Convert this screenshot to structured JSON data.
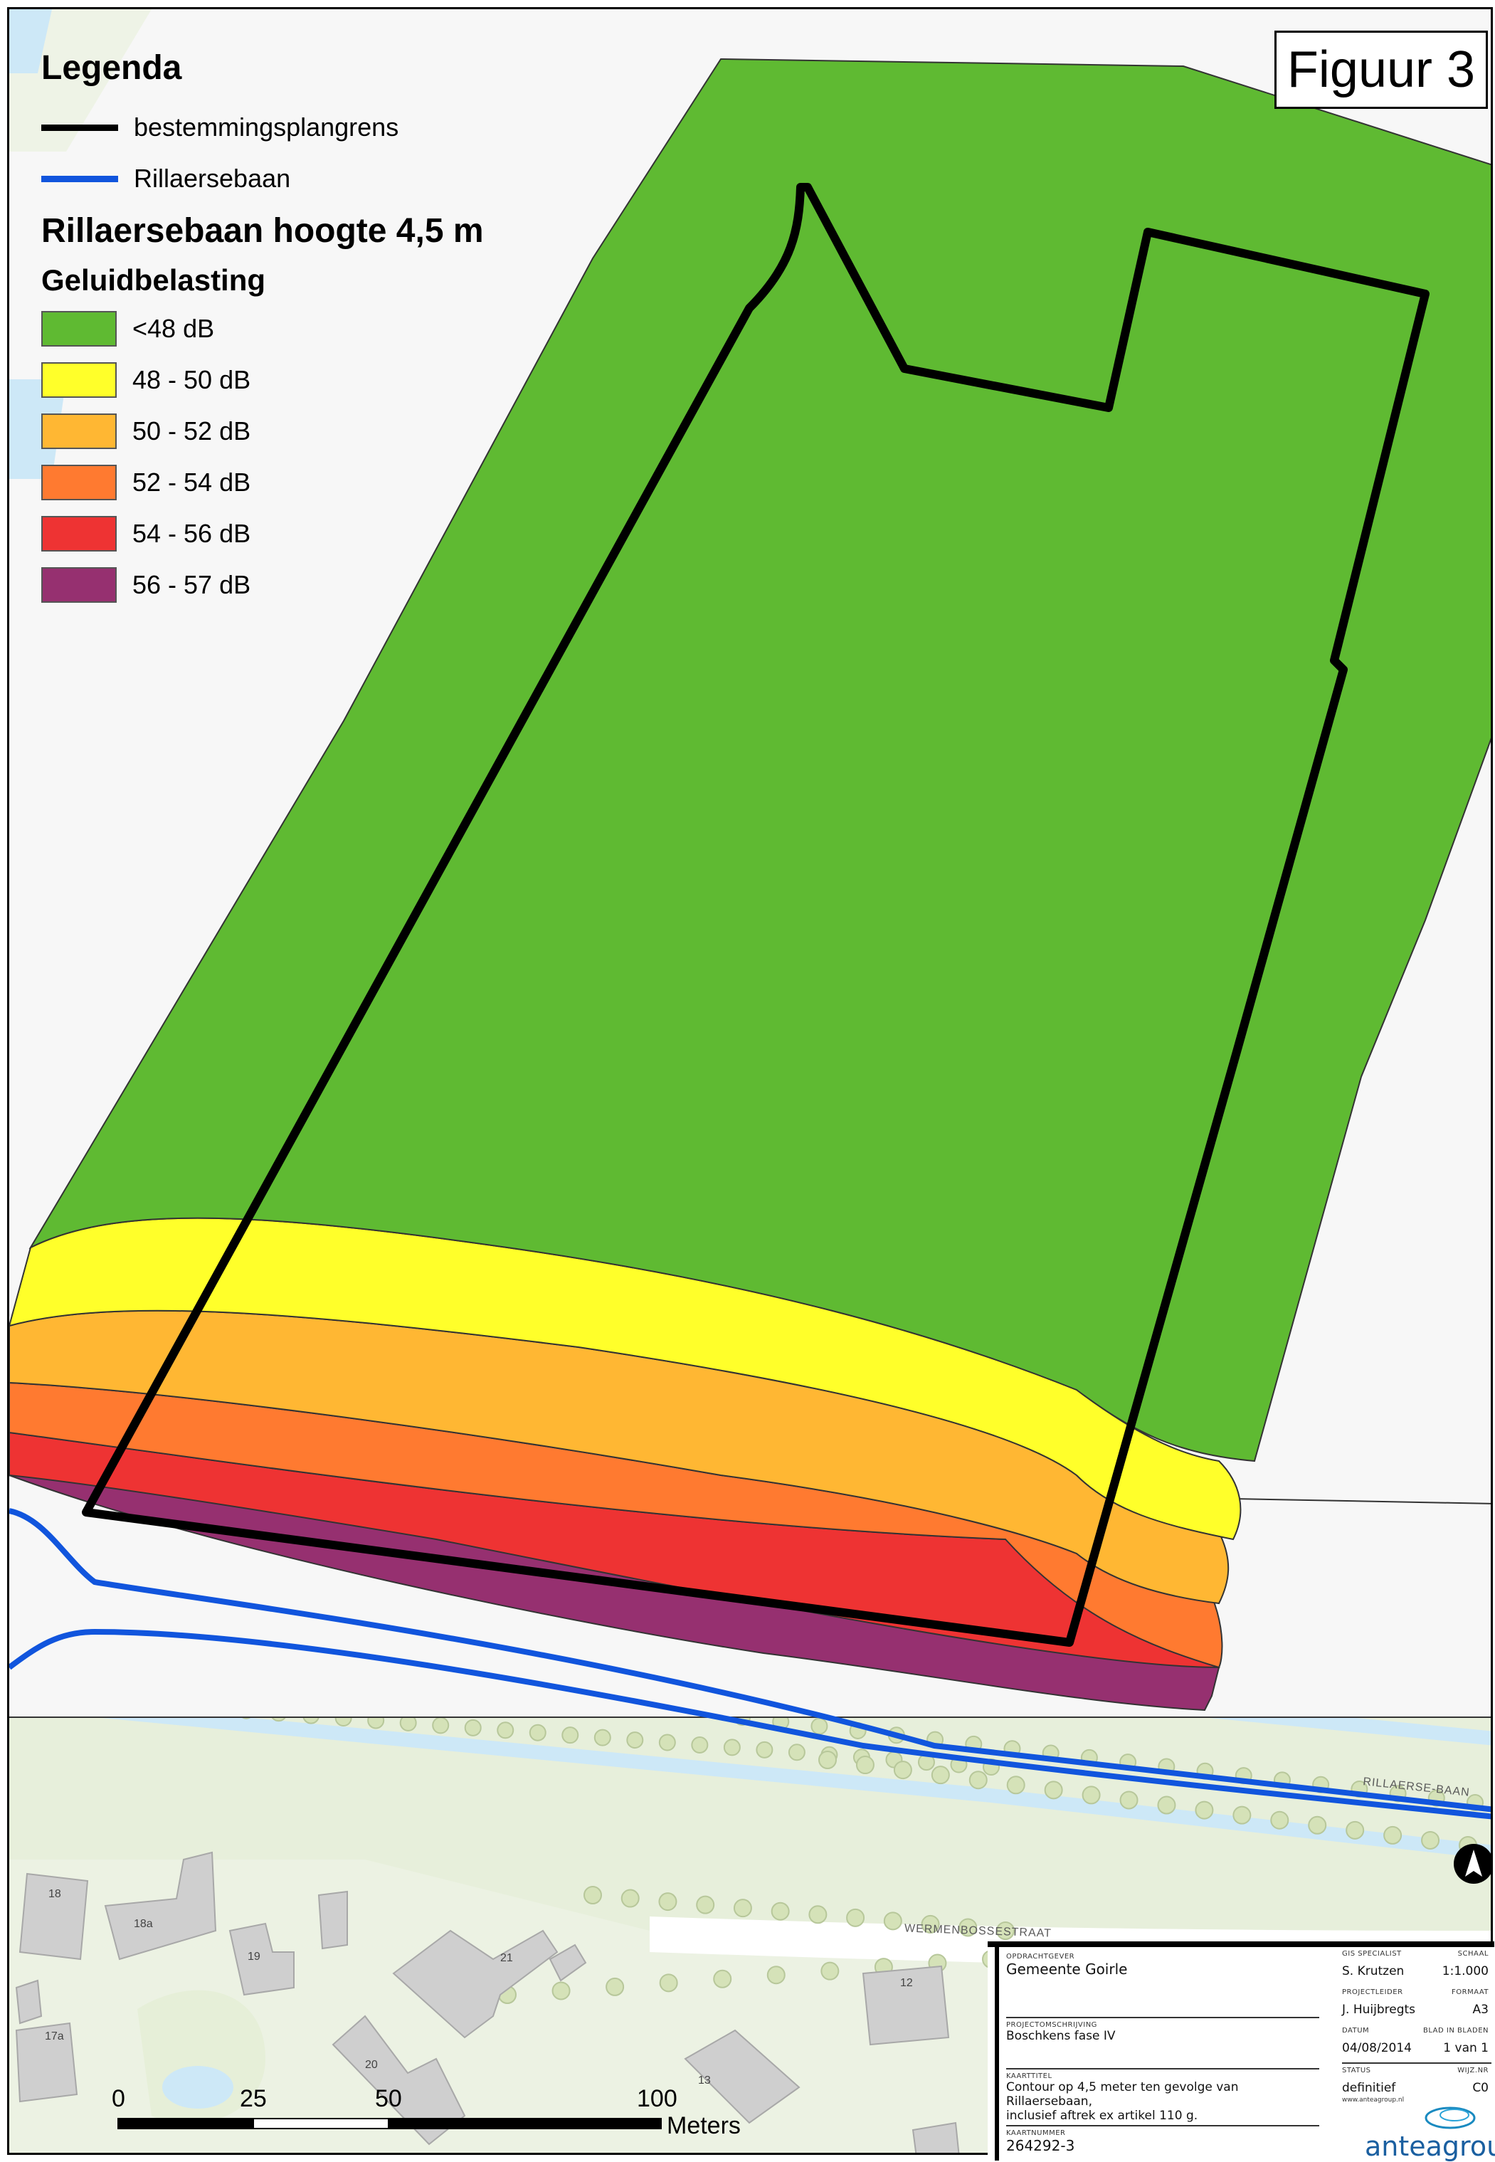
{
  "figure_label": "Figuur 3",
  "legend": {
    "title": "Legenda",
    "lines": [
      {
        "label": "bestemmingsplangrens",
        "color": "#000000"
      },
      {
        "label": "Rillaersebaan",
        "color": "#1155dd"
      }
    ],
    "subtitle": "Rillaersebaan hoogte 4,5 m",
    "category_title": "Geluidbelasting",
    "classes": [
      {
        "label": "<48 dB",
        "color": "#5fba32"
      },
      {
        "label": "48 - 50 dB",
        "color": "#ffff2a"
      },
      {
        "label": "50 - 52 dB",
        "color": "#ffb733"
      },
      {
        "label": "52 - 54 dB",
        "color": "#ff7a30"
      },
      {
        "label": "54 - 56 dB",
        "color": "#ee3333"
      },
      {
        "label": "56 - 57 dB",
        "color": "#963070"
      }
    ]
  },
  "map_labels": {
    "street_1": "RILLAERSE-BAAN",
    "street_2": "WERMENBOSSESTRAAT",
    "house_numbers": [
      "18",
      "18a",
      "19",
      "21",
      "20",
      "17a",
      "12",
      "13"
    ]
  },
  "scalebar": {
    "ticks": [
      "0",
      "25",
      "50",
      "100"
    ],
    "unit": "Meters"
  },
  "title_block": {
    "opdrachtgever_label": "OPDRACHTGEVER",
    "opdrachtgever": "Gemeente Goirle",
    "projectomschrijving_label": "PROJECTOMSCHRIJVING",
    "projectomschrijving": "Boschkens fase IV",
    "kaarttitel_label": "KAARTTITEL",
    "kaarttitel_1": "Contour op 4,5 meter ten gevolge van Rillaersebaan,",
    "kaarttitel_2": "inclusief aftrek ex artikel 110 g.",
    "kaartnummer_label": "KAARTNUMMER",
    "kaartnummer": "264292-3",
    "gis_label": "GIS SPECIALIST",
    "gis": "S. Krutzen",
    "schaal_label": "SCHAAL",
    "schaal": "1:1.000",
    "projectleider_label": "PROJECTLEIDER",
    "projectleider": "J. Huijbregts",
    "formaat_label": "FORMAAT",
    "formaat": "A3",
    "datum_label": "DATUM",
    "datum": "04/08/2014",
    "blad_label": "BLAD IN BLADEN",
    "blad": "1 van 1",
    "status_label": "STATUS",
    "status": "definitief",
    "wijznr_label": "WIJZ.NR",
    "wijznr": "C0",
    "url": "www.anteagroup.nl",
    "logo": "anteagroup"
  }
}
